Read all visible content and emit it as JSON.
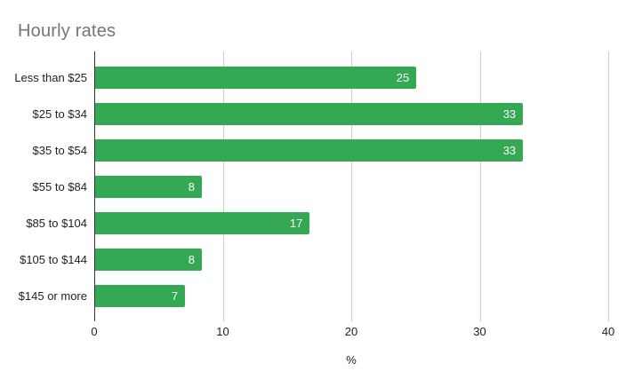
{
  "title": "Hourly rates",
  "colors": {
    "bar": "#34A853",
    "title_text": "#757575",
    "axis_line": "#333333",
    "gridline": "#cccccc",
    "label_text": "#222222",
    "value_text": "#ffffff",
    "background": "#ffffff"
  },
  "chart_data": {
    "type": "bar",
    "orientation": "horizontal",
    "title": "Hourly rates",
    "categories": [
      "Less than $25",
      "$25 to $34",
      "$35 to $54",
      "$55 to $84",
      "$85 to $104",
      "$105 to $144",
      "$145 or more"
    ],
    "values": [
      25,
      33,
      33,
      8,
      17,
      8,
      7
    ],
    "bar_values_precise": [
      25,
      33.3,
      33.3,
      8.3,
      16.7,
      8.3,
      7
    ],
    "xlabel": "%",
    "xlim": [
      0,
      40
    ],
    "xticks": [
      0,
      10,
      20,
      30,
      40
    ],
    "grid": "vertical-gridlines",
    "legend": "none"
  }
}
